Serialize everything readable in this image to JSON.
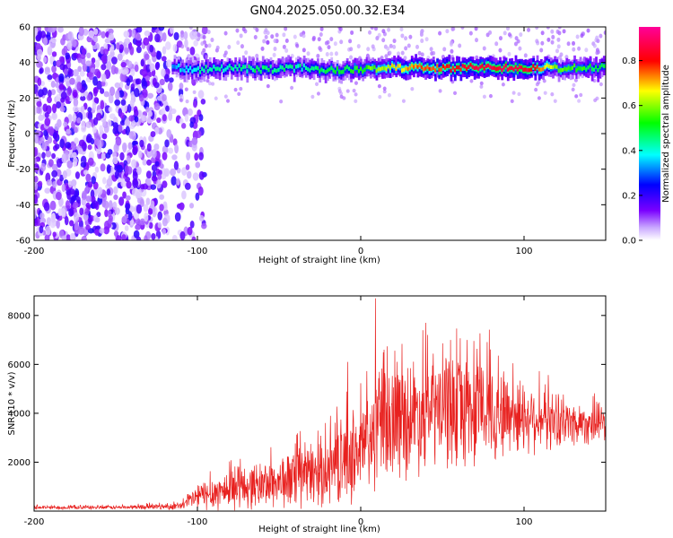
{
  "title": "GN04.2025.050.00.32.E34",
  "chart_data": [
    {
      "type": "heatmap",
      "xlabel": "Height of straight line (km)",
      "ylabel": "Frequency (Hz)",
      "xlim": [
        -200,
        150
      ],
      "ylim": [
        -60,
        60
      ],
      "xticks": [
        -200,
        -100,
        0,
        100
      ],
      "yticks": [
        -60,
        -40,
        -20,
        0,
        20,
        40,
        60
      ],
      "noise_region_x": [
        -200,
        -105
      ],
      "signal_onset_x": -115,
      "signal": [
        {
          "x": -115,
          "center_hz": 37,
          "amplitude": 0.35
        },
        {
          "x": -100,
          "center_hz": 36,
          "amplitude": 0.45
        },
        {
          "x": -80,
          "center_hz": 37,
          "amplitude": 0.45
        },
        {
          "x": -60,
          "center_hz": 36,
          "amplitude": 0.5
        },
        {
          "x": -40,
          "center_hz": 37,
          "amplitude": 0.45
        },
        {
          "x": -20,
          "center_hz": 36,
          "amplitude": 0.5
        },
        {
          "x": 0,
          "center_hz": 36,
          "amplitude": 0.55
        },
        {
          "x": 20,
          "center_hz": 37,
          "amplitude": 0.7
        },
        {
          "x": 40,
          "center_hz": 37,
          "amplitude": 0.8
        },
        {
          "x": 60,
          "center_hz": 37,
          "amplitude": 0.85
        },
        {
          "x": 80,
          "center_hz": 37,
          "amplitude": 0.9
        },
        {
          "x": 100,
          "center_hz": 37,
          "amplitude": 0.92
        },
        {
          "x": 120,
          "center_hz": 37,
          "amplitude": 0.6
        },
        {
          "x": 150,
          "center_hz": 37,
          "amplitude": 0.5
        }
      ],
      "colorbar": {
        "label": "Normalized spectral amplitude",
        "range": [
          0,
          0.95
        ],
        "ticks": [
          0.0,
          0.2,
          0.4,
          0.6,
          0.8
        ],
        "tick_labels": [
          "0.0",
          "0.2",
          "0.4",
          "0.6",
          "0.8"
        ],
        "colors": [
          "#ffffff",
          "#7a00ff",
          "#0000ff",
          "#00ffff",
          "#00ff00",
          "#ffff00",
          "#ff0000",
          "#ff00aa"
        ]
      }
    },
    {
      "type": "line",
      "xlabel": "Height of straight line (km)",
      "ylabel": "SNR (10 * v/v)",
      "xlim": [
        -200,
        150
      ],
      "ylim": [
        0,
        8800
      ],
      "xticks": [
        -200,
        -100,
        0,
        100
      ],
      "yticks": [
        2000,
        4000,
        6000,
        8000
      ],
      "color": "#e8211f",
      "envelope": [
        {
          "x": -200,
          "mean": 150,
          "spread": 80
        },
        {
          "x": -150,
          "mean": 150,
          "spread": 80
        },
        {
          "x": -110,
          "mean": 200,
          "spread": 150
        },
        {
          "x": -100,
          "mean": 600,
          "spread": 600
        },
        {
          "x": -80,
          "mean": 900,
          "spread": 900
        },
        {
          "x": -60,
          "mean": 1100,
          "spread": 1000
        },
        {
          "x": -40,
          "mean": 1300,
          "spread": 1300
        },
        {
          "x": -20,
          "mean": 1700,
          "spread": 1500
        },
        {
          "x": 0,
          "mean": 2500,
          "spread": 2200
        },
        {
          "x": 15,
          "mean": 3600,
          "spread": 2600
        },
        {
          "x": 40,
          "mean": 4100,
          "spread": 2500
        },
        {
          "x": 60,
          "mean": 4200,
          "spread": 2600
        },
        {
          "x": 80,
          "mean": 4100,
          "spread": 2200
        },
        {
          "x": 100,
          "mean": 3900,
          "spread": 1600
        },
        {
          "x": 130,
          "mean": 3600,
          "spread": 1000
        },
        {
          "x": 150,
          "mean": 3600,
          "spread": 800
        }
      ],
      "peaks": [
        {
          "x": 9,
          "y": 8700
        },
        {
          "x": -8,
          "y": 6100
        },
        {
          "x": 38,
          "y": 7400
        },
        {
          "x": 55,
          "y": 7000
        },
        {
          "x": 65,
          "y": 7000
        }
      ]
    }
  ]
}
